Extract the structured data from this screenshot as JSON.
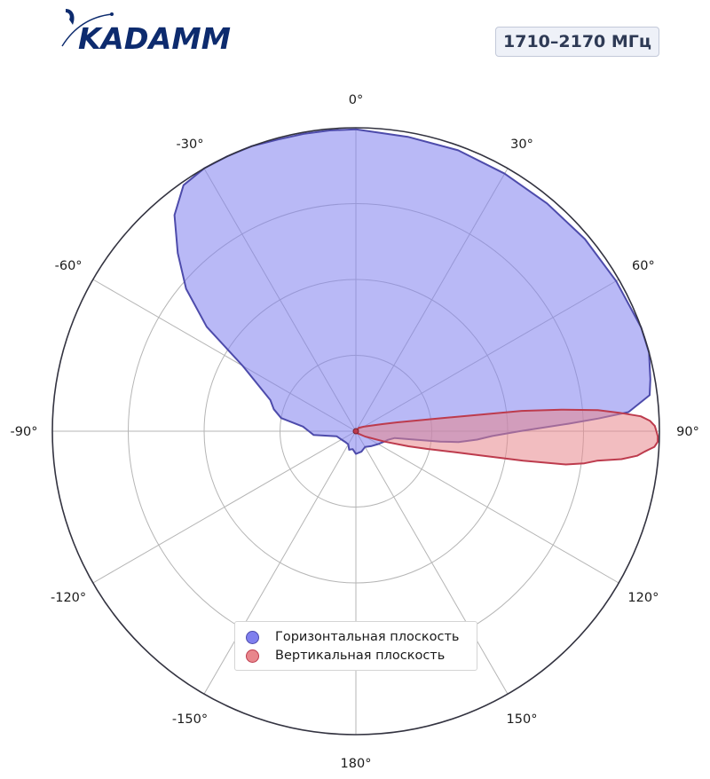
{
  "header": {
    "brand": "KADAMM",
    "frequency_label": "1710–2170 МГц"
  },
  "colors": {
    "brand": "#0d2b6e",
    "horizontal_fill": "#7f7fee",
    "horizontal_line": "#4d4bab",
    "vertical_fill": "#e8868c",
    "vertical_line": "#bd3b4d",
    "outer_ring": "#333340",
    "grid": "#b5b5b5"
  },
  "chart_data": {
    "type": "polar",
    "units": "degrees",
    "zero_direction": "top",
    "direction": "clockwise",
    "radial_range": [
      0,
      1
    ],
    "radial_grid": [
      0.25,
      0.5,
      0.75
    ],
    "angle_ticks": [
      {
        "deg": 0,
        "label": "0°"
      },
      {
        "deg": 30,
        "label": "30°"
      },
      {
        "deg": 60,
        "label": "60°"
      },
      {
        "deg": 90,
        "label": "90°"
      },
      {
        "deg": 120,
        "label": "120°"
      },
      {
        "deg": 150,
        "label": "150°"
      },
      {
        "deg": 180,
        "label": "180°"
      },
      {
        "deg": -150,
        "label": "-150°"
      },
      {
        "deg": -120,
        "label": "-120°"
      },
      {
        "deg": -90,
        "label": "-90°"
      },
      {
        "deg": -60,
        "label": "-60°"
      },
      {
        "deg": -30,
        "label": "-30°"
      }
    ],
    "legend_position": "bottom-center",
    "series": [
      {
        "name": "Горизонтальная плоскость",
        "points": [
          [
            0,
            0.995
          ],
          [
            10,
            0.985
          ],
          [
            20,
            0.985
          ],
          [
            30,
            0.98
          ],
          [
            40,
            0.98
          ],
          [
            50,
            0.985
          ],
          [
            60,
            0.99
          ],
          [
            70,
            1.0
          ],
          [
            75,
            1.0
          ],
          [
            80,
            0.985
          ],
          [
            83,
            0.975
          ],
          [
            86,
            0.9
          ],
          [
            87,
            0.8
          ],
          [
            88,
            0.7
          ],
          [
            90,
            0.54
          ],
          [
            92,
            0.45
          ],
          [
            94,
            0.4
          ],
          [
            96,
            0.34
          ],
          [
            97,
            0.28
          ],
          [
            100,
            0.13
          ],
          [
            105,
            0.11
          ],
          [
            110,
            0.1
          ],
          [
            120,
            0.085
          ],
          [
            135,
            0.07
          ],
          [
            150,
            0.06
          ],
          [
            165,
            0.07
          ],
          [
            180,
            0.075
          ],
          [
            190,
            0.06
          ],
          [
            200,
            0.065
          ],
          [
            210,
            0.05
          ],
          [
            225,
            0.05
          ],
          [
            240,
            0.055
          ],
          [
            255,
            0.065
          ],
          [
            265,
            0.14
          ],
          [
            270,
            0.155
          ],
          [
            275,
            0.175
          ],
          [
            280,
            0.25
          ],
          [
            285,
            0.28
          ],
          [
            290,
            0.3
          ],
          [
            300,
            0.43
          ],
          [
            305,
            0.6
          ],
          [
            310,
            0.73
          ],
          [
            315,
            0.83
          ],
          [
            320,
            0.93
          ],
          [
            325,
            0.99
          ],
          [
            330,
            1.0
          ],
          [
            335,
            1.0
          ],
          [
            340,
            1.0
          ],
          [
            345,
            0.995
          ],
          [
            350,
            0.995
          ],
          [
            355,
            0.995
          ],
          [
            360,
            0.995
          ]
        ]
      },
      {
        "name": "Вертикальная плоскость",
        "points": [
          [
            0,
            0.0
          ],
          [
            40,
            0.015
          ],
          [
            60,
            0.03
          ],
          [
            70,
            0.055
          ],
          [
            75,
            0.09
          ],
          [
            78,
            0.14
          ],
          [
            81,
            0.26
          ],
          [
            83,
            0.55
          ],
          [
            84,
            0.68
          ],
          [
            85,
            0.8
          ],
          [
            86,
            0.87
          ],
          [
            87,
            0.94
          ],
          [
            88,
            0.97
          ],
          [
            89,
            0.985
          ],
          [
            90,
            0.99
          ],
          [
            91,
            0.995
          ],
          [
            92,
            0.995
          ],
          [
            93,
            0.985
          ],
          [
            94,
            0.955
          ],
          [
            95,
            0.93
          ],
          [
            96,
            0.88
          ],
          [
            97,
            0.8
          ],
          [
            98,
            0.76
          ],
          [
            99,
            0.7
          ],
          [
            100,
            0.56
          ],
          [
            101,
            0.42
          ],
          [
            102,
            0.33
          ],
          [
            104,
            0.24
          ],
          [
            106,
            0.18
          ],
          [
            110,
            0.1
          ],
          [
            120,
            0.035
          ],
          [
            140,
            0.01
          ],
          [
            180,
            0.0
          ],
          [
            270,
            0.0
          ],
          [
            360,
            0.0
          ]
        ]
      }
    ]
  }
}
